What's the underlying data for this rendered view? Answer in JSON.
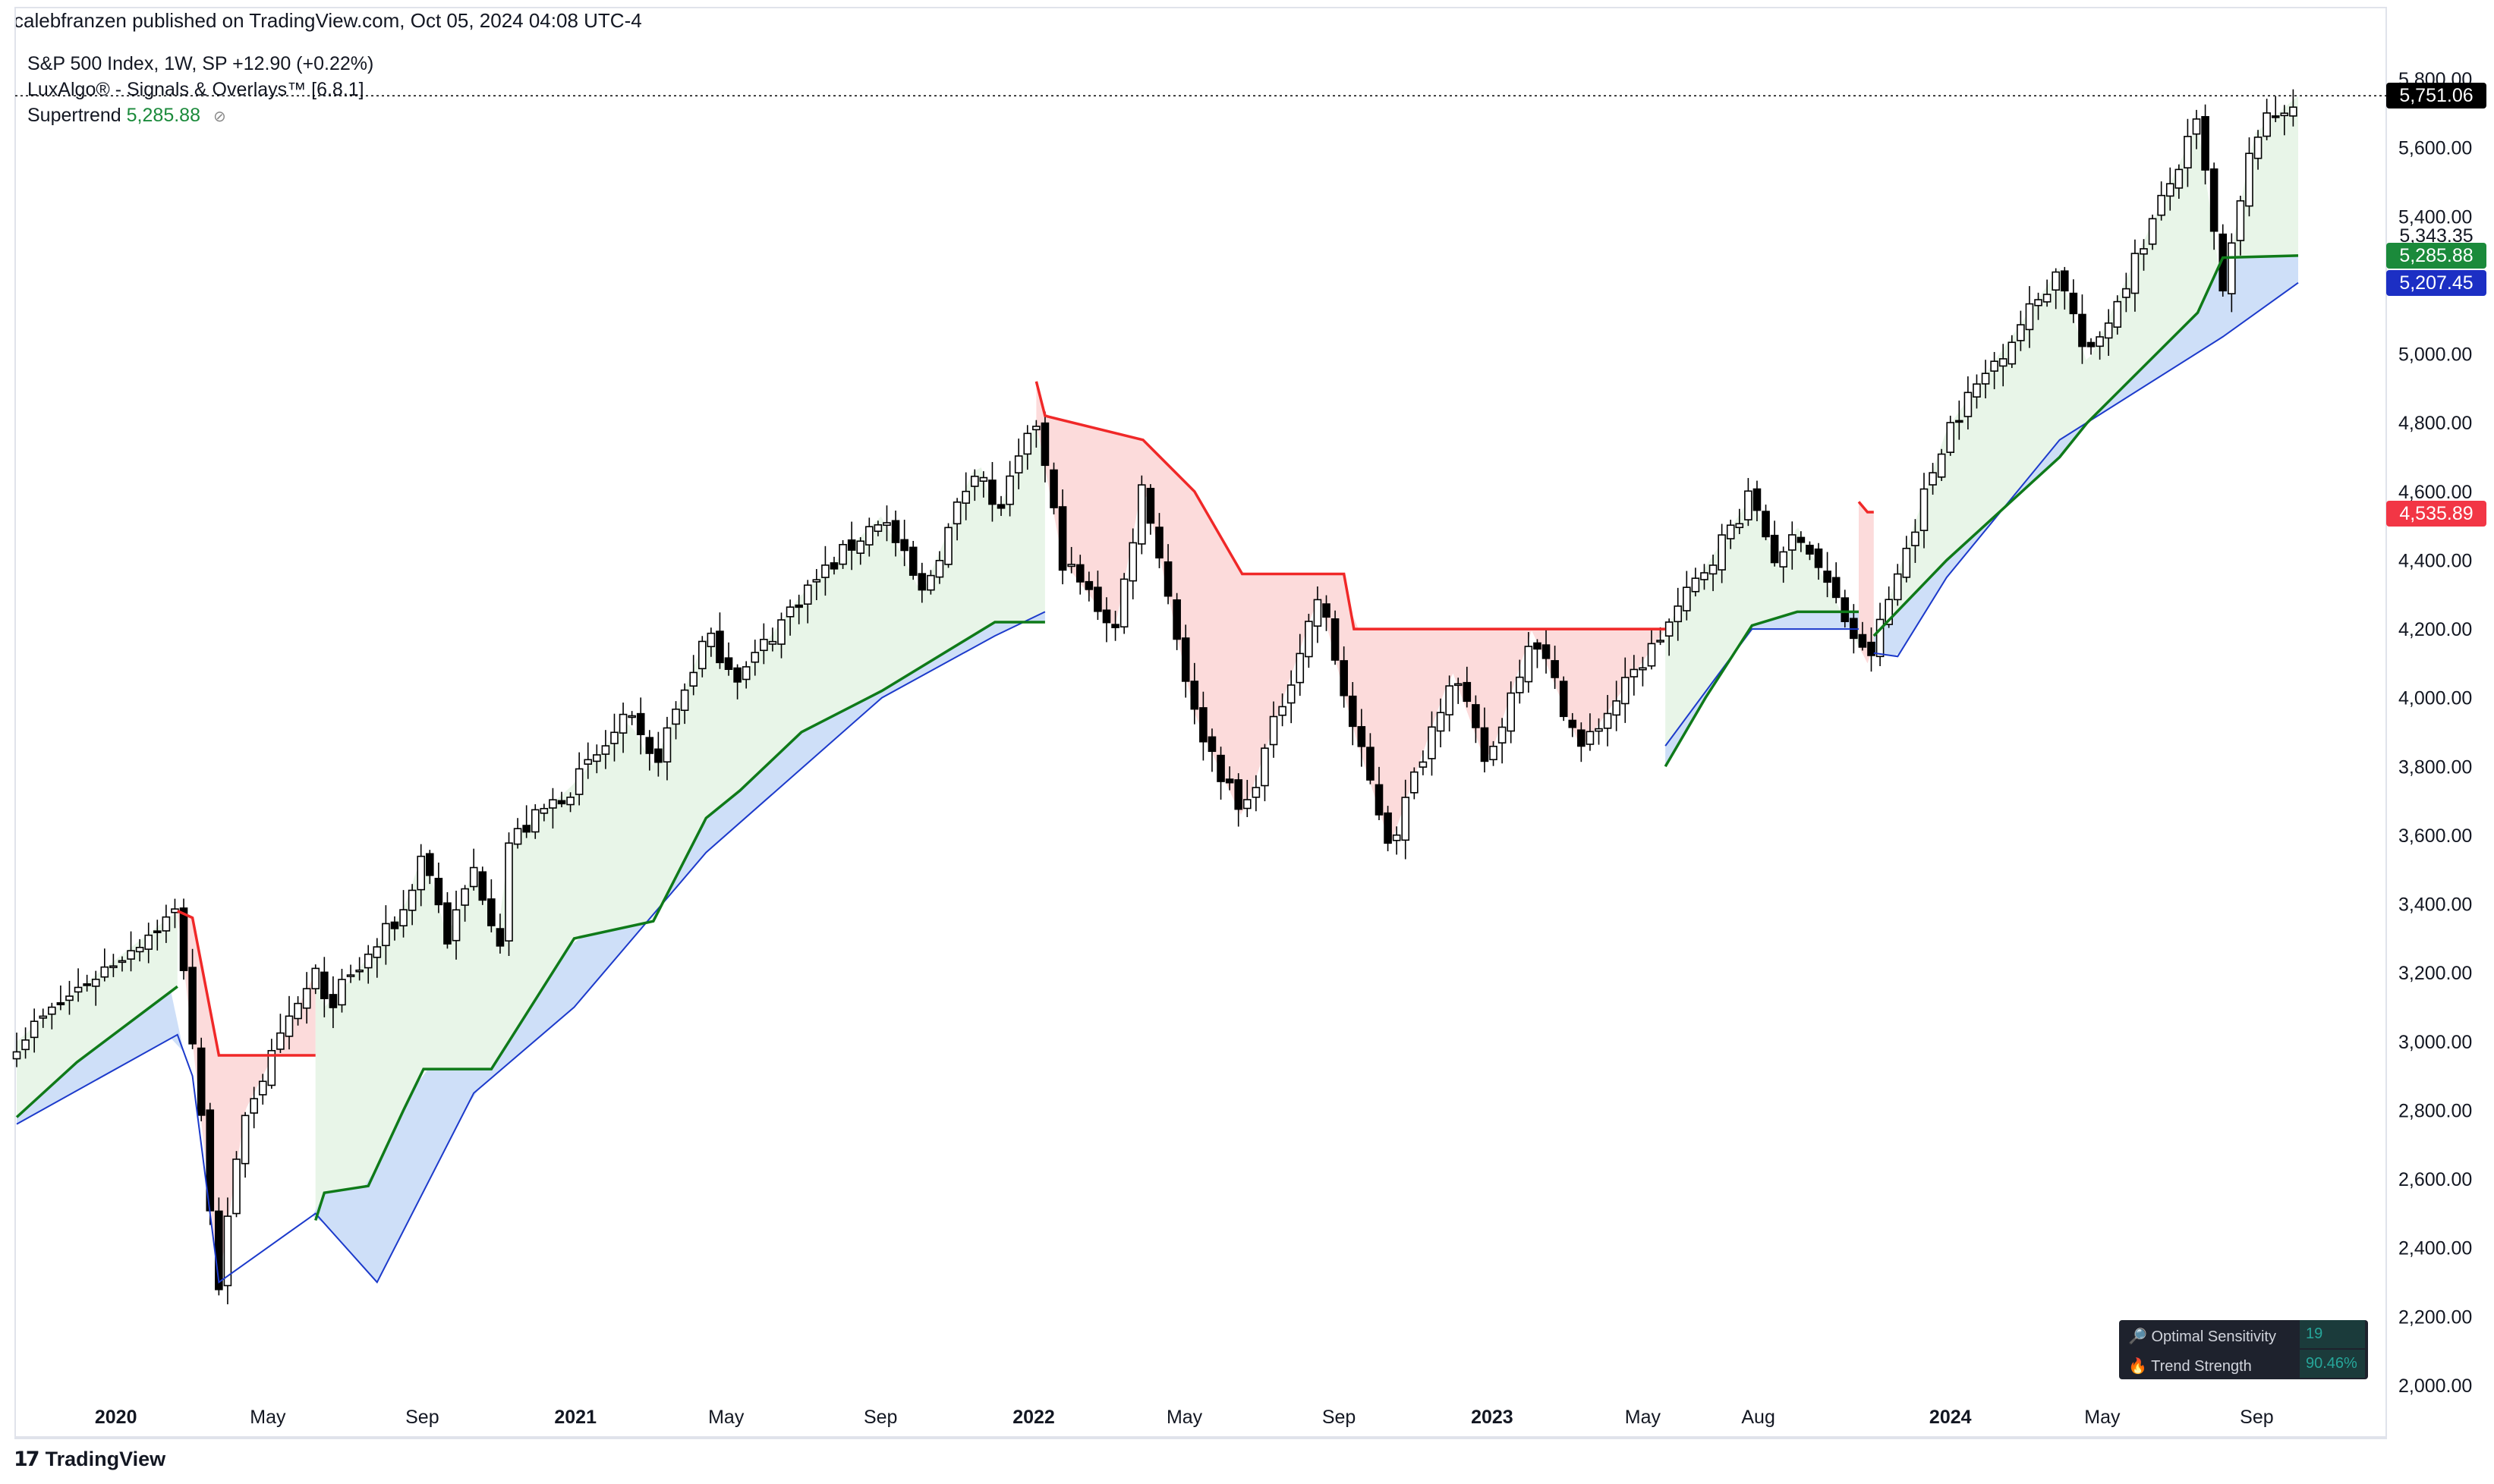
{
  "header": {
    "publish_line": "calebfranzen published on TradingView.com, Oct 05, 2024 04:08 UTC-4",
    "symbol_line": "S&P 500 Index, 1W, SP  +12.90 (+0.22%)",
    "indicator_line": "LuxAlgo® - Signals & Overlays™ [6.8.1]",
    "supertrend_label": "Supertrend",
    "supertrend_value": "5,285.88",
    "eye_icon": "eye-slash-icon"
  },
  "footer": {
    "brand": "TradingView",
    "logo_icon": "tv-logo-icon"
  },
  "price_tags": {
    "last": "5,751.06",
    "level_plain": "5,343.35",
    "supertrend": "5,285.88",
    "band": "5,207.45",
    "resistance": "4,535.89"
  },
  "colors": {
    "last_tag": "#000000",
    "supertrend_tag": "#1b8a3b",
    "band_tag": "#1c2fc4",
    "resistance_tag": "#f23645",
    "bull_line": "#0f7a19",
    "bear_line": "#f02828",
    "blue_line": "#1c3acb",
    "bull_fill": "#e6f4e6",
    "bear_fill": "#fbd5d5",
    "blue_fill": "#c9dbf7"
  },
  "info_table": {
    "rows": [
      {
        "icon": "magnifier-icon",
        "label": "Optimal Sensitivity",
        "value": "19"
      },
      {
        "icon": "fire-icon",
        "label": "Trend Strength",
        "value": "90.46%"
      }
    ]
  },
  "chart_data": {
    "type": "candlestick",
    "title": "S&P 500 Index, 1W, SP",
    "ylim": [
      2000,
      5800
    ],
    "y_ticks": [
      "5,800.00",
      "5,600.00",
      "5,400.00",
      "5,200.00",
      "5,000.00",
      "4,800.00",
      "4,600.00",
      "4,400.00",
      "4,200.00",
      "4,000.00",
      "3,800.00",
      "3,600.00",
      "3,400.00",
      "3,200.00",
      "3,000.00",
      "2,800.00",
      "2,600.00",
      "2,400.00",
      "2,200.00",
      "2,000.00"
    ],
    "x_ticks": [
      {
        "label": "2020",
        "date": "2020-01-01",
        "bold": true
      },
      {
        "label": "May",
        "date": "2020-05-01",
        "bold": false
      },
      {
        "label": "Sep",
        "date": "2020-09-01",
        "bold": false
      },
      {
        "label": "2021",
        "date": "2021-01-01",
        "bold": true
      },
      {
        "label": "May",
        "date": "2021-05-01",
        "bold": false
      },
      {
        "label": "Sep",
        "date": "2021-09-01",
        "bold": false
      },
      {
        "label": "2022",
        "date": "2022-01-01",
        "bold": true
      },
      {
        "label": "May",
        "date": "2022-05-01",
        "bold": false
      },
      {
        "label": "Sep",
        "date": "2022-09-01",
        "bold": false
      },
      {
        "label": "2023",
        "date": "2023-01-01",
        "bold": true
      },
      {
        "label": "May",
        "date": "2023-05-01",
        "bold": false
      },
      {
        "label": "Aug",
        "date": "2023-08-01",
        "bold": false
      },
      {
        "label": "2024",
        "date": "2024-01-01",
        "bold": true
      },
      {
        "label": "May",
        "date": "2024-05-01",
        "bold": false
      },
      {
        "label": "Sep",
        "date": "2024-09-01",
        "bold": false
      }
    ],
    "date_range": [
      "2019-10-14",
      "2024-10-04"
    ],
    "close_path": [
      [
        "2019-10-14",
        3000
      ],
      [
        "2019-12-01",
        3150
      ],
      [
        "2020-02-19",
        3380
      ],
      [
        "2020-03-02",
        3000
      ],
      [
        "2020-03-23",
        2300
      ],
      [
        "2020-04-13",
        2800
      ],
      [
        "2020-06-08",
        3200
      ],
      [
        "2020-06-15",
        3100
      ],
      [
        "2020-07-06",
        3180
      ],
      [
        "2020-08-17",
        3380
      ],
      [
        "2020-09-02",
        3560
      ],
      [
        "2020-09-21",
        3300
      ],
      [
        "2020-10-12",
        3500
      ],
      [
        "2020-11-02",
        3300
      ],
      [
        "2020-11-09",
        3580
      ],
      [
        "2020-12-31",
        3750
      ],
      [
        "2021-02-12",
        3940
      ],
      [
        "2021-03-04",
        3800
      ],
      [
        "2021-04-15",
        4180
      ],
      [
        "2021-05-12",
        4060
      ],
      [
        "2021-06-30",
        4300
      ],
      [
        "2021-09-02",
        4530
      ],
      [
        "2021-10-04",
        4300
      ],
      [
        "2021-11-18",
        4700
      ],
      [
        "2021-12-01",
        4520
      ],
      [
        "2022-01-03",
        4800
      ],
      [
        "2022-01-24",
        4400
      ],
      [
        "2022-03-07",
        4200
      ],
      [
        "2022-03-29",
        4630
      ],
      [
        "2022-05-09",
        3950
      ],
      [
        "2022-06-16",
        3650
      ],
      [
        "2022-08-16",
        4300
      ],
      [
        "2022-09-13",
        3900
      ],
      [
        "2022-10-12",
        3570
      ],
      [
        "2022-11-30",
        4080
      ],
      [
        "2022-12-28",
        3800
      ],
      [
        "2023-02-02",
        4200
      ],
      [
        "2023-03-13",
        3850
      ],
      [
        "2023-05-19",
        4200
      ],
      [
        "2023-07-27",
        4590
      ],
      [
        "2023-08-18",
        4370
      ],
      [
        "2023-09-01",
        4500
      ],
      [
        "2023-10-27",
        4100
      ],
      [
        "2023-12-29",
        4780
      ],
      [
        "2024-03-28",
        5250
      ],
      [
        "2024-04-19",
        4970
      ],
      [
        "2024-07-16",
        5670
      ],
      [
        "2024-08-05",
        5170
      ],
      [
        "2024-08-30",
        5640
      ],
      [
        "2024-10-04",
        5751
      ]
    ],
    "supertrend_bull": [
      [
        [
          "2019-10-14",
          2780
        ],
        [
          "2019-12-01",
          2940
        ],
        [
          "2020-02-19",
          3160
        ]
      ],
      [
        [
          "2020-06-08",
          2480
        ],
        [
          "2020-06-15",
          2560
        ],
        [
          "2020-07-20",
          2580
        ],
        [
          "2020-08-17",
          2800
        ],
        [
          "2020-09-02",
          2920
        ],
        [
          "2020-10-26",
          2920
        ],
        [
          "2020-11-09",
          3000
        ],
        [
          "2020-12-31",
          3300
        ],
        [
          "2021-03-04",
          3350
        ],
        [
          "2021-04-15",
          3650
        ],
        [
          "2021-05-12",
          3730
        ],
        [
          "2021-06-30",
          3900
        ],
        [
          "2021-09-02",
          4020
        ],
        [
          "2021-12-01",
          4220
        ],
        [
          "2022-01-10",
          4220
        ]
      ],
      [
        [
          "2023-05-19",
          3800
        ],
        [
          "2023-06-20",
          4000
        ],
        [
          "2023-07-27",
          4210
        ],
        [
          "2023-09-01",
          4250
        ],
        [
          "2023-10-20",
          4250
        ]
      ],
      [
        [
          "2023-11-01",
          4180
        ],
        [
          "2023-12-29",
          4400
        ],
        [
          "2024-03-28",
          4700
        ],
        [
          "2024-04-19",
          4800
        ],
        [
          "2024-07-16",
          5120
        ],
        [
          "2024-08-05",
          5280
        ],
        [
          "2024-10-04",
          5286
        ]
      ]
    ],
    "supertrend_bear": [
      [
        [
          "2020-02-19",
          3380
        ],
        [
          "2020-03-02",
          3360
        ],
        [
          "2020-03-23",
          2960
        ],
        [
          "2020-06-08",
          2960
        ]
      ],
      [
        [
          "2022-01-03",
          4920
        ],
        [
          "2022-01-10",
          4820
        ],
        [
          "2022-03-29",
          4750
        ],
        [
          "2022-05-09",
          4600
        ],
        [
          "2022-06-16",
          4360
        ],
        [
          "2022-09-05",
          4360
        ],
        [
          "2022-09-13",
          4200
        ],
        [
          "2023-05-19",
          4200
        ]
      ],
      [
        [
          "2023-10-20",
          4570
        ],
        [
          "2023-10-27",
          4540
        ],
        [
          "2023-11-01",
          4540
        ]
      ]
    ],
    "blue_band": [
      [
        [
          "2019-10-14",
          2760
        ],
        [
          "2020-02-19",
          3020
        ],
        [
          "2020-03-02",
          2900
        ],
        [
          "2020-03-23",
          2300
        ],
        [
          "2020-06-08",
          2500
        ],
        [
          "2020-07-27",
          2300
        ],
        [
          "2020-10-12",
          2850
        ],
        [
          "2020-12-31",
          3100
        ],
        [
          "2021-04-15",
          3550
        ],
        [
          "2021-09-02",
          4000
        ],
        [
          "2021-12-01",
          4180
        ],
        [
          "2022-01-10",
          4250
        ]
      ],
      [
        [
          "2023-05-19",
          3860
        ],
        [
          "2023-07-27",
          4200
        ],
        [
          "2023-09-01",
          4200
        ],
        [
          "2023-10-20",
          4200
        ]
      ],
      [
        [
          "2023-11-01",
          4130
        ],
        [
          "2023-11-20",
          4120
        ],
        [
          "2023-12-29",
          4350
        ],
        [
          "2024-03-28",
          4750
        ],
        [
          "2024-08-05",
          5050
        ],
        [
          "2024-10-04",
          5207
        ]
      ]
    ]
  }
}
